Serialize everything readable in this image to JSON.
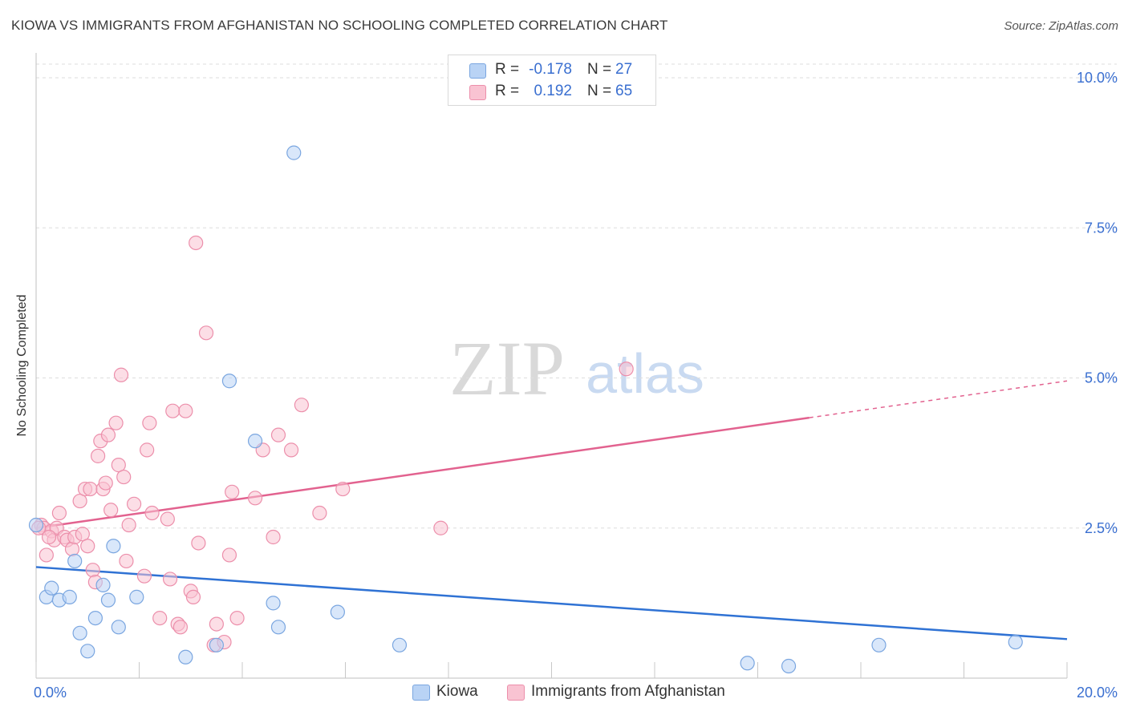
{
  "header": {
    "title": "KIOWA VS IMMIGRANTS FROM AFGHANISTAN NO SCHOOLING COMPLETED CORRELATION CHART",
    "source": "Source: ZipAtlas.com"
  },
  "watermark": {
    "zip": "ZIP",
    "atlas": "atlas"
  },
  "legend": {
    "rows": [
      {
        "r_label": "R =",
        "r_value": "-0.178",
        "n_label": "N =",
        "n_value": "27"
      },
      {
        "r_label": "R =",
        "r_value": "0.192",
        "n_label": "N =",
        "n_value": "65"
      }
    ]
  },
  "bottom_legend": {
    "kiowa": "Kiowa",
    "afghan": "Immigrants from Afghanistan"
  },
  "colors": {
    "kiowa_fill": "#b9d3f5",
    "kiowa_stroke": "#7aa6e0",
    "kiowa_line": "#2f72d4",
    "afghan_fill": "#f9c3d2",
    "afghan_stroke": "#ec8fab",
    "afghan_line": "#e2628f",
    "tick_label": "#3a6fd0",
    "grid": "#dedede"
  },
  "chart_data": {
    "type": "scatter",
    "title": "KIOWA VS IMMIGRANTS FROM AFGHANISTAN NO SCHOOLING COMPLETED CORRELATION CHART",
    "xlabel": "",
    "ylabel": "No Schooling Completed",
    "xlim": [
      0,
      20
    ],
    "ylim": [
      0,
      10.5
    ],
    "x_tick_labels": [
      {
        "value": 0,
        "label": "0.0%"
      },
      {
        "value": 20,
        "label": "20.0%"
      }
    ],
    "y_tick_labels": [
      {
        "value": 2.5,
        "label": "2.5%"
      },
      {
        "value": 5.0,
        "label": "5.0%"
      },
      {
        "value": 7.5,
        "label": "7.5%"
      },
      {
        "value": 10.0,
        "label": "10.0%"
      }
    ],
    "series": [
      {
        "name": "Kiowa",
        "color": "#7aa6e0",
        "points": [
          [
            0.0,
            2.55
          ],
          [
            0.2,
            1.35
          ],
          [
            0.3,
            1.5
          ],
          [
            0.45,
            1.3
          ],
          [
            0.65,
            1.35
          ],
          [
            0.75,
            1.95
          ],
          [
            0.85,
            0.75
          ],
          [
            1.0,
            0.45
          ],
          [
            1.15,
            1.0
          ],
          [
            1.3,
            1.55
          ],
          [
            1.4,
            1.3
          ],
          [
            1.5,
            2.2
          ],
          [
            1.6,
            0.85
          ],
          [
            1.95,
            1.35
          ],
          [
            2.9,
            0.35
          ],
          [
            3.5,
            0.55
          ],
          [
            3.75,
            4.95
          ],
          [
            4.25,
            3.95
          ],
          [
            4.6,
            1.25
          ],
          [
            4.7,
            0.85
          ],
          [
            5.0,
            8.75
          ],
          [
            5.85,
            1.1
          ],
          [
            7.05,
            0.55
          ],
          [
            13.8,
            0.25
          ],
          [
            14.6,
            0.2
          ],
          [
            16.35,
            0.55
          ],
          [
            19.0,
            0.6
          ]
        ]
      },
      {
        "name": "Immigrants from Afghanistan",
        "color": "#ec8fab",
        "points": [
          [
            0.1,
            2.55
          ],
          [
            0.15,
            2.5
          ],
          [
            0.2,
            2.05
          ],
          [
            0.3,
            2.45
          ],
          [
            0.35,
            2.3
          ],
          [
            0.4,
            2.5
          ],
          [
            0.45,
            2.75
          ],
          [
            0.55,
            2.35
          ],
          [
            0.6,
            2.3
          ],
          [
            0.7,
            2.15
          ],
          [
            0.75,
            2.35
          ],
          [
            0.85,
            2.95
          ],
          [
            0.9,
            2.4
          ],
          [
            0.95,
            3.15
          ],
          [
            1.05,
            3.15
          ],
          [
            1.1,
            1.8
          ],
          [
            1.15,
            1.6
          ],
          [
            1.2,
            3.7
          ],
          [
            1.25,
            3.95
          ],
          [
            1.3,
            3.15
          ],
          [
            1.35,
            3.25
          ],
          [
            1.4,
            4.05
          ],
          [
            1.45,
            2.8
          ],
          [
            1.55,
            4.25
          ],
          [
            1.6,
            3.55
          ],
          [
            1.65,
            5.05
          ],
          [
            1.7,
            3.35
          ],
          [
            1.75,
            1.95
          ],
          [
            1.8,
            2.55
          ],
          [
            1.9,
            2.9
          ],
          [
            2.1,
            1.7
          ],
          [
            2.15,
            3.8
          ],
          [
            2.2,
            4.25
          ],
          [
            2.25,
            2.75
          ],
          [
            2.4,
            1.0
          ],
          [
            2.55,
            2.65
          ],
          [
            2.6,
            1.65
          ],
          [
            2.65,
            4.45
          ],
          [
            2.75,
            0.9
          ],
          [
            2.8,
            0.85
          ],
          [
            2.9,
            4.45
          ],
          [
            3.0,
            1.45
          ],
          [
            3.05,
            1.35
          ],
          [
            3.1,
            7.25
          ],
          [
            3.15,
            2.25
          ],
          [
            3.3,
            5.75
          ],
          [
            3.45,
            0.55
          ],
          [
            3.5,
            0.9
          ],
          [
            3.65,
            0.6
          ],
          [
            3.75,
            2.05
          ],
          [
            3.8,
            3.1
          ],
          [
            3.9,
            1.0
          ],
          [
            4.25,
            3.0
          ],
          [
            4.4,
            3.8
          ],
          [
            4.6,
            2.35
          ],
          [
            4.7,
            4.05
          ],
          [
            4.95,
            3.8
          ],
          [
            5.15,
            4.55
          ],
          [
            5.5,
            2.75
          ],
          [
            5.95,
            3.15
          ],
          [
            7.85,
            2.5
          ],
          [
            11.45,
            5.15
          ],
          [
            0.05,
            2.5
          ],
          [
            0.25,
            2.35
          ],
          [
            1.0,
            2.2
          ]
        ]
      }
    ],
    "trend_lines": [
      {
        "name": "Kiowa",
        "x": [
          0,
          20
        ],
        "y": [
          1.85,
          0.65
        ],
        "dashed_from_x": null
      },
      {
        "name": "Immigrants from Afghanistan",
        "x": [
          0,
          20
        ],
        "y": [
          2.5,
          4.95
        ],
        "dashed_from_x": 15
      }
    ],
    "legend_position": "top-center"
  }
}
